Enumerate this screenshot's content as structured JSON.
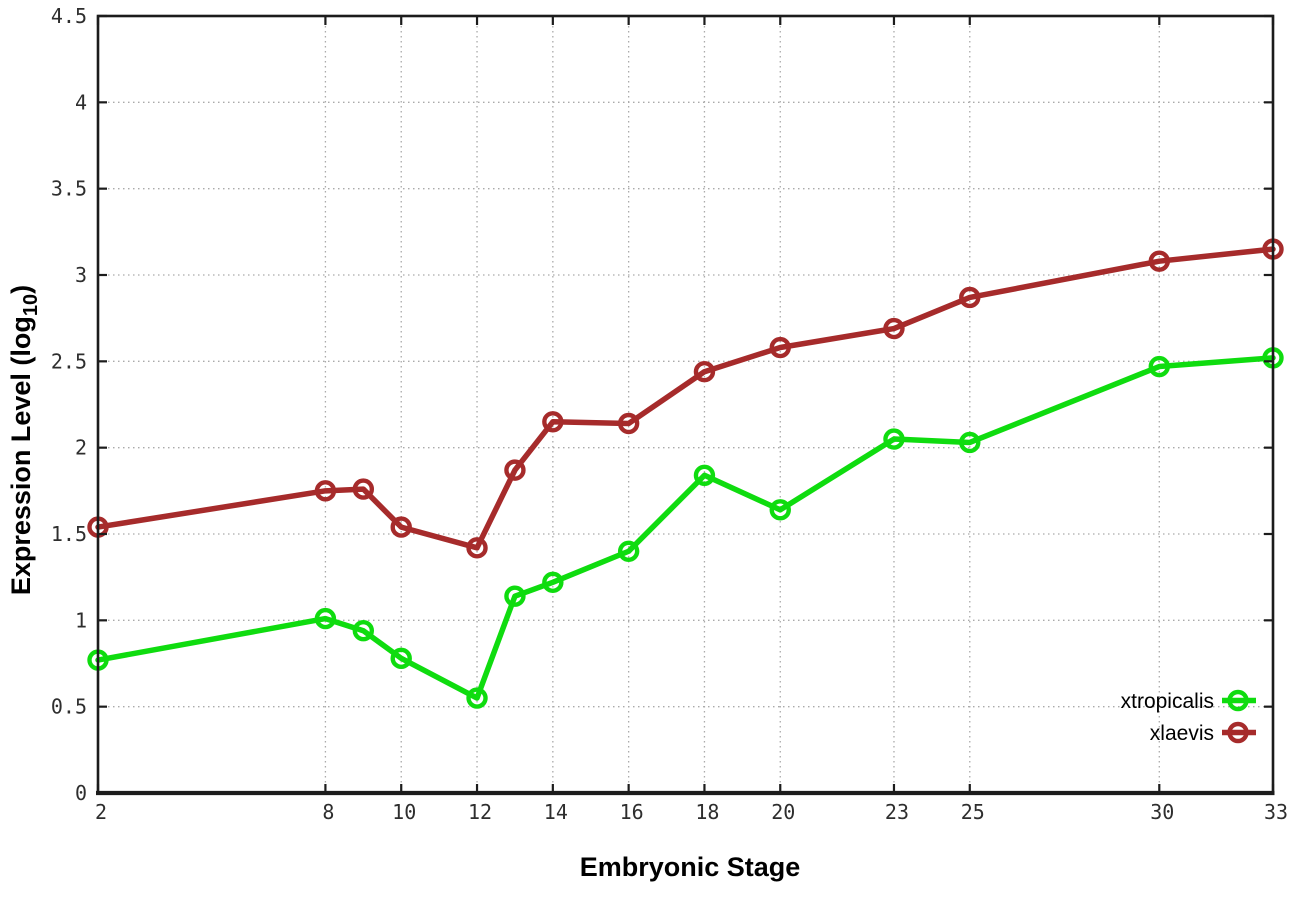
{
  "chart_data": {
    "type": "line",
    "title": "",
    "xlabel": "Embryonic Stage",
    "ylabel": "Expression Level (log10)",
    "ylabel_main": "Expression Level (log",
    "ylabel_sub": "10",
    "ylabel_close": ")",
    "x": [
      2,
      8,
      9,
      10,
      12,
      13,
      14,
      16,
      18,
      20,
      23,
      25,
      30,
      33
    ],
    "xticks": [
      2,
      8,
      10,
      12,
      14,
      16,
      18,
      20,
      23,
      25,
      30,
      33
    ],
    "yticks": [
      0,
      0.5,
      1,
      1.5,
      2,
      2.5,
      3,
      3.5,
      4,
      4.5
    ],
    "xlim": [
      2,
      33
    ],
    "ylim": [
      0,
      4.5
    ],
    "grid": true,
    "legend_position": "bottom-right",
    "series": [
      {
        "name": "xtropicalis",
        "color": "#0fdc0f",
        "marker": "open-circle",
        "values": [
          0.77,
          1.01,
          0.94,
          0.78,
          0.55,
          1.14,
          1.22,
          1.4,
          1.84,
          1.64,
          2.05,
          2.03,
          2.47,
          2.52
        ]
      },
      {
        "name": "xlaevis",
        "color": "#a62b2b",
        "marker": "open-circle",
        "values": [
          1.54,
          1.75,
          1.76,
          1.54,
          1.42,
          1.87,
          2.15,
          2.14,
          2.44,
          2.58,
          2.69,
          2.87,
          3.08,
          3.15
        ]
      }
    ]
  },
  "styles": {
    "grid_color": "#aaaaaa",
    "axis_color": "#1c1c1c",
    "tick_label_color": "#2e2e2e",
    "background": "#ffffff"
  }
}
